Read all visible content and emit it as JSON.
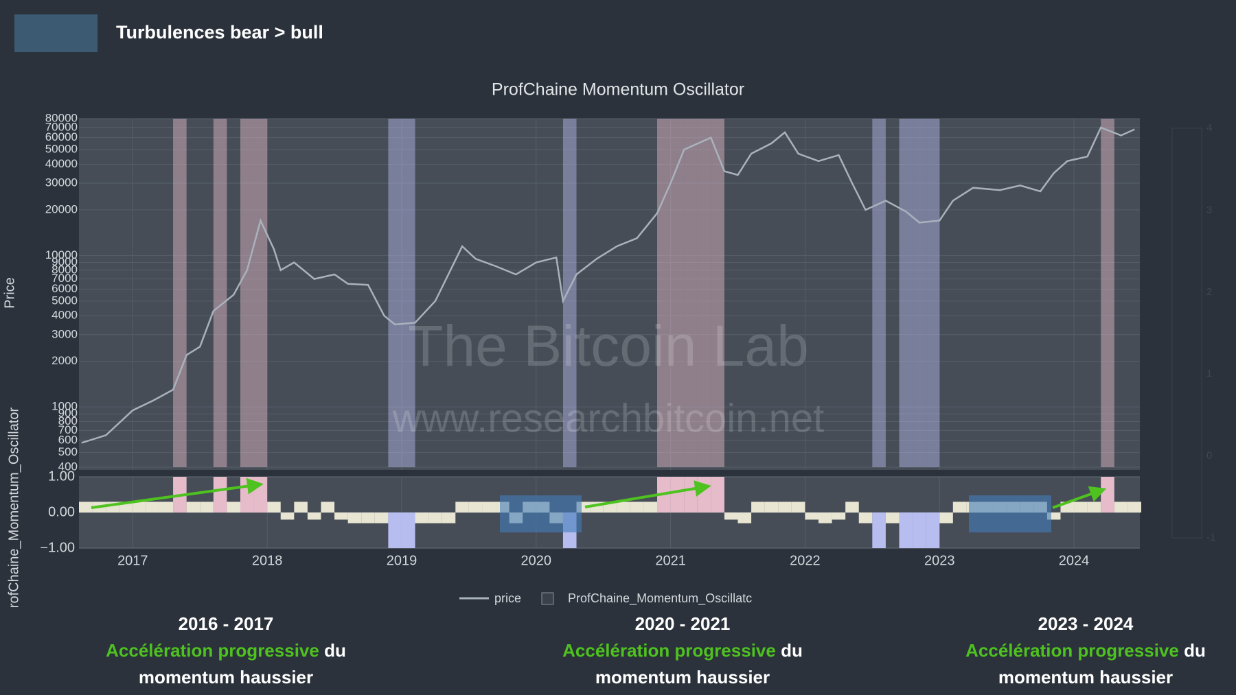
{
  "header": {
    "title": "Turbulences bear > bull"
  },
  "chart_data": [
    {
      "type": "line",
      "title": "ProfChaine Momentum Oscillator",
      "watermark": [
        "The Bitcoin Lab",
        "www.researchbitcoin.net"
      ],
      "y_label": "Price",
      "log_y": true,
      "grid": true,
      "legend": "bottom",
      "xlim": [
        2016.6,
        2024.49
      ],
      "ylim": [
        400,
        80000
      ],
      "yticks": [
        400,
        500,
        600,
        700,
        800,
        900,
        1000,
        2000,
        3000,
        4000,
        5000,
        6000,
        7000,
        8000,
        9000,
        10000,
        20000,
        30000,
        40000,
        50000,
        60000,
        70000,
        80000
      ],
      "x": [
        2016.62,
        2016.8,
        2017.0,
        2017.15,
        2017.3,
        2017.4,
        2017.5,
        2017.6,
        2017.75,
        2017.85,
        2017.95,
        2018.05,
        2018.1,
        2018.2,
        2018.35,
        2018.5,
        2018.6,
        2018.75,
        2018.87,
        2018.95,
        2019.1,
        2019.25,
        2019.45,
        2019.55,
        2019.7,
        2019.85,
        2020.0,
        2020.15,
        2020.2,
        2020.3,
        2020.45,
        2020.6,
        2020.75,
        2020.9,
        2021.0,
        2021.1,
        2021.3,
        2021.4,
        2021.5,
        2021.6,
        2021.75,
        2021.85,
        2021.95,
        2022.1,
        2022.25,
        2022.35,
        2022.45,
        2022.6,
        2022.75,
        2022.85,
        2023.0,
        2023.1,
        2023.25,
        2023.45,
        2023.6,
        2023.75,
        2023.85,
        2023.95,
        2024.1,
        2024.2,
        2024.35,
        2024.45
      ],
      "series": [
        {
          "name": "price",
          "color": "#a9b2bc",
          "values": [
            580,
            650,
            950,
            1100,
            1300,
            2200,
            2500,
            4300,
            5500,
            8000,
            17000,
            11000,
            8000,
            9000,
            7000,
            7500,
            6500,
            6400,
            4000,
            3500,
            3600,
            5000,
            11500,
            9500,
            8500,
            7500,
            9000,
            9700,
            5000,
            7500,
            9500,
            11500,
            13000,
            19000,
            30000,
            50000,
            60000,
            36000,
            34000,
            47000,
            55000,
            65000,
            47000,
            42000,
            46000,
            30000,
            20000,
            23000,
            19500,
            16500,
            17000,
            23000,
            28000,
            27000,
            29000,
            26500,
            35000,
            42000,
            45000,
            70000,
            62000,
            68000
          ]
        }
      ]
    },
    {
      "type": "bar",
      "y_label": "rofChaine_Momentum_Oscillator",
      "xlim": [
        2016.6,
        2024.49
      ],
      "xticks": [
        2017,
        2018,
        2019,
        2020,
        2021,
        2022,
        2023,
        2024
      ],
      "ylim": [
        -1,
        1
      ],
      "yticks": [
        {
          "value": 1,
          "label": "1.00"
        },
        {
          "value": 0,
          "label": "0.00"
        },
        {
          "value": -1,
          "label": "−1.00"
        }
      ],
      "high_color": "#e6bccb",
      "low_color": "#b8bdf0",
      "colorbar": {
        "lim": [
          -1,
          4
        ],
        "ticks": [
          4,
          3,
          2,
          1,
          0,
          -1
        ]
      },
      "x": [
        2016.6,
        2016.7,
        2016.8,
        2016.9,
        2017.0,
        2017.1,
        2017.2,
        2017.3,
        2017.4,
        2017.5,
        2017.6,
        2017.7,
        2017.8,
        2017.9,
        2018.0,
        2018.1,
        2018.2,
        2018.3,
        2018.4,
        2018.5,
        2018.6,
        2018.7,
        2018.8,
        2018.9,
        2019.0,
        2019.1,
        2019.2,
        2019.3,
        2019.4,
        2019.5,
        2019.6,
        2019.7,
        2019.8,
        2019.9,
        2020.0,
        2020.1,
        2020.2,
        2020.3,
        2020.4,
        2020.5,
        2020.6,
        2020.7,
        2020.8,
        2020.9,
        2021.0,
        2021.1,
        2021.2,
        2021.3,
        2021.4,
        2021.5,
        2021.6,
        2021.7,
        2021.8,
        2021.9,
        2022.0,
        2022.1,
        2022.2,
        2022.3,
        2022.4,
        2022.5,
        2022.6,
        2022.7,
        2022.8,
        2022.9,
        2023.0,
        2023.1,
        2023.2,
        2023.3,
        2023.4,
        2023.5,
        2023.6,
        2023.7,
        2023.8,
        2023.9,
        2024.0,
        2024.1,
        2024.2,
        2024.3,
        2024.4
      ],
      "series": [
        {
          "name": "ProfChaine_Momentum_Oscillatc",
          "color": "#e8e5d2",
          "values": [
            0.3,
            0.3,
            0.3,
            0.3,
            0.3,
            0.3,
            0.3,
            1,
            0.3,
            0.3,
            1,
            0.3,
            1,
            1,
            0.3,
            -0.2,
            0.3,
            -0.2,
            0.3,
            -0.2,
            -0.3,
            -0.3,
            -0.3,
            -1,
            -1,
            -0.3,
            -0.3,
            -0.3,
            0.3,
            0.3,
            0.3,
            0.3,
            -0.3,
            0.3,
            0.3,
            -0.3,
            -1,
            0.3,
            0.3,
            0.3,
            0.3,
            0.3,
            0.3,
            1,
            1,
            1,
            1,
            1,
            -0.2,
            -0.3,
            0.3,
            0.3,
            0.3,
            0.3,
            -0.2,
            -0.3,
            -0.2,
            0.3,
            -0.3,
            -1,
            -0.3,
            -1,
            -1,
            -1,
            -0.3,
            0.3,
            0.3,
            0.3,
            0.3,
            0.3,
            0.3,
            0.3,
            -0.2,
            0.3,
            0.3,
            0.3,
            1,
            0.3,
            0.3
          ]
        }
      ]
    }
  ],
  "captions": [
    {
      "period": "2016 - 2017",
      "highlight": "Accélération progressive",
      "text": "du momentum haussier"
    },
    {
      "period": "2020 - 2021",
      "highlight": "Accélération progressive",
      "text": "du momentum haussier"
    },
    {
      "period": "2023 - 2024",
      "highlight": "Accélération progressive",
      "text": "du momentum haussier"
    }
  ]
}
